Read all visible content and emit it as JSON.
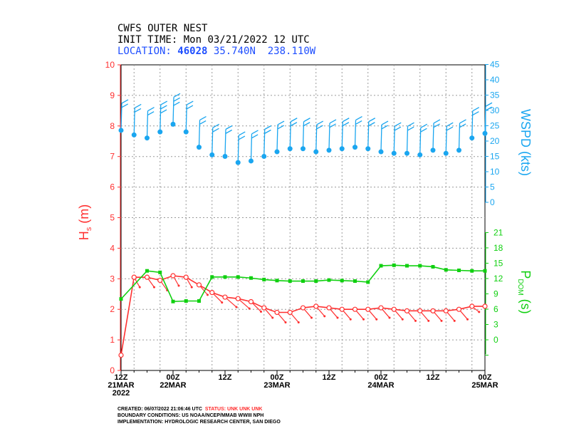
{
  "header": {
    "title": "CWFS OUTER NEST",
    "init_label": "INIT TIME:",
    "init_value": "Mon 03/21/2022 12 UTC",
    "location_label": "LOCATION:",
    "station_id": "46028",
    "coords": "35.740N  238.110W"
  },
  "footer": {
    "created": "CREATED: 06/07/2022 21:06:46 UTC",
    "status": "STATUS: UNK UNK UNK",
    "boundary": "BOUNDARY CONDITIONS: US NOAA/NCEP/MMAB WWIII NPH",
    "implementation": "IMPLEMENTATION: HYDROLOGIC RESEARCH CENTER, SAN DIEGO"
  },
  "colors": {
    "hs": "#ff3030",
    "tp": "#10d010",
    "wspd": "#1aa6f0",
    "grid": "#9a9a9a",
    "text": "#000000"
  },
  "chart_data": {
    "type": "line",
    "x_ticks": [
      {
        "hour": 0,
        "labels": [
          "12Z",
          "21MAR",
          "2022"
        ]
      },
      {
        "hour": 12,
        "labels": [
          "00Z",
          "22MAR"
        ]
      },
      {
        "hour": 24,
        "labels": [
          "12Z"
        ]
      },
      {
        "hour": 36,
        "labels": [
          "00Z",
          "23MAR"
        ]
      },
      {
        "hour": 48,
        "labels": [
          "12Z"
        ]
      },
      {
        "hour": 60,
        "labels": [
          "00Z",
          "24MAR"
        ]
      },
      {
        "hour": 72,
        "labels": [
          "12Z"
        ]
      },
      {
        "hour": 84,
        "labels": [
          "00Z",
          "25MAR"
        ]
      }
    ],
    "x_range_hours": [
      0,
      84
    ],
    "left_axis": {
      "label": "Hs (m)",
      "label_main": "H",
      "label_sub": "s",
      "label_unit": "(m)",
      "ticks": [
        0,
        1,
        2,
        3,
        4,
        5,
        6,
        7,
        8,
        9,
        10
      ],
      "ylim": [
        0,
        10
      ]
    },
    "right_axis_wspd": {
      "label": "WSPD (kts)",
      "ticks": [
        0,
        5,
        10,
        15,
        20,
        25,
        30,
        35,
        40,
        45
      ]
    },
    "right_axis_tp": {
      "label": "PDOM (s)",
      "label_main": "P",
      "label_sub": "DOM",
      "label_unit": "(s)",
      "ticks": [
        0,
        3,
        6,
        9,
        12,
        15,
        18,
        21
      ]
    },
    "hs": {
      "name": "Hs",
      "hours": [
        0,
        3,
        6,
        9,
        12,
        15,
        18,
        21,
        24,
        27,
        30,
        33,
        36,
        39,
        42,
        45,
        48,
        51,
        54,
        57,
        60,
        63,
        66,
        69,
        72,
        75,
        78,
        81,
        84
      ],
      "values": [
        0.5,
        3.05,
        3.05,
        2.95,
        3.1,
        3.05,
        2.8,
        2.55,
        2.4,
        2.35,
        2.25,
        2.05,
        1.9,
        1.9,
        2.05,
        2.1,
        2.05,
        2.0,
        2.0,
        2.0,
        2.05,
        2.0,
        1.95,
        1.95,
        1.95,
        1.95,
        2.0,
        2.1,
        2.1
      ],
      "dir_dx": [
        0,
        8,
        10,
        10,
        8,
        8,
        12,
        14,
        16,
        16,
        14,
        12,
        12,
        12,
        12,
        12,
        12,
        12,
        12,
        12,
        12,
        12,
        12,
        12,
        12,
        12,
        12,
        10,
        0
      ],
      "dir_dy": [
        0,
        14,
        14,
        14,
        14,
        14,
        14,
        14,
        14,
        14,
        14,
        14,
        14,
        14,
        14,
        14,
        14,
        14,
        14,
        14,
        14,
        14,
        14,
        14,
        14,
        14,
        14,
        8,
        0
      ]
    },
    "tp": {
      "name": "PDOM",
      "hours": [
        0,
        6,
        9,
        12,
        15,
        18,
        21,
        24,
        27,
        30,
        33,
        36,
        39,
        42,
        45,
        48,
        51,
        54,
        57,
        60,
        63,
        66,
        69,
        72,
        75,
        78,
        81,
        84
      ],
      "values": [
        8,
        13.5,
        13.2,
        7.5,
        7.6,
        7.6,
        12.3,
        12.3,
        12.3,
        12.1,
        11.8,
        11.6,
        11.5,
        11.5,
        11.5,
        11.7,
        11.6,
        11.5,
        11.3,
        14.5,
        14.6,
        14.5,
        14.5,
        14.3,
        13.7,
        13.6,
        13.5,
        13.5
      ]
    },
    "wspd": {
      "name": "WSPD",
      "hours": [
        0,
        3,
        6,
        9,
        12,
        15,
        18,
        21,
        24,
        27,
        30,
        33,
        36,
        39,
        42,
        45,
        48,
        51,
        54,
        57,
        60,
        63,
        66,
        69,
        72,
        75,
        78,
        81,
        84
      ],
      "values": [
        23.5,
        22,
        21,
        23,
        25.5,
        23,
        18,
        15.5,
        15,
        13,
        13.5,
        15,
        16.5,
        17.5,
        17.5,
        16.5,
        17,
        17.5,
        18,
        17.5,
        16.5,
        16,
        16,
        15.5,
        17,
        16,
        17,
        21,
        22.5
      ],
      "barbs": [
        2,
        2,
        2,
        3,
        3,
        2,
        2,
        2,
        2,
        2,
        2,
        2,
        2,
        2,
        2,
        2,
        2,
        2,
        2,
        2,
        2,
        2,
        2,
        2,
        2,
        2,
        2,
        2,
        2
      ]
    }
  }
}
